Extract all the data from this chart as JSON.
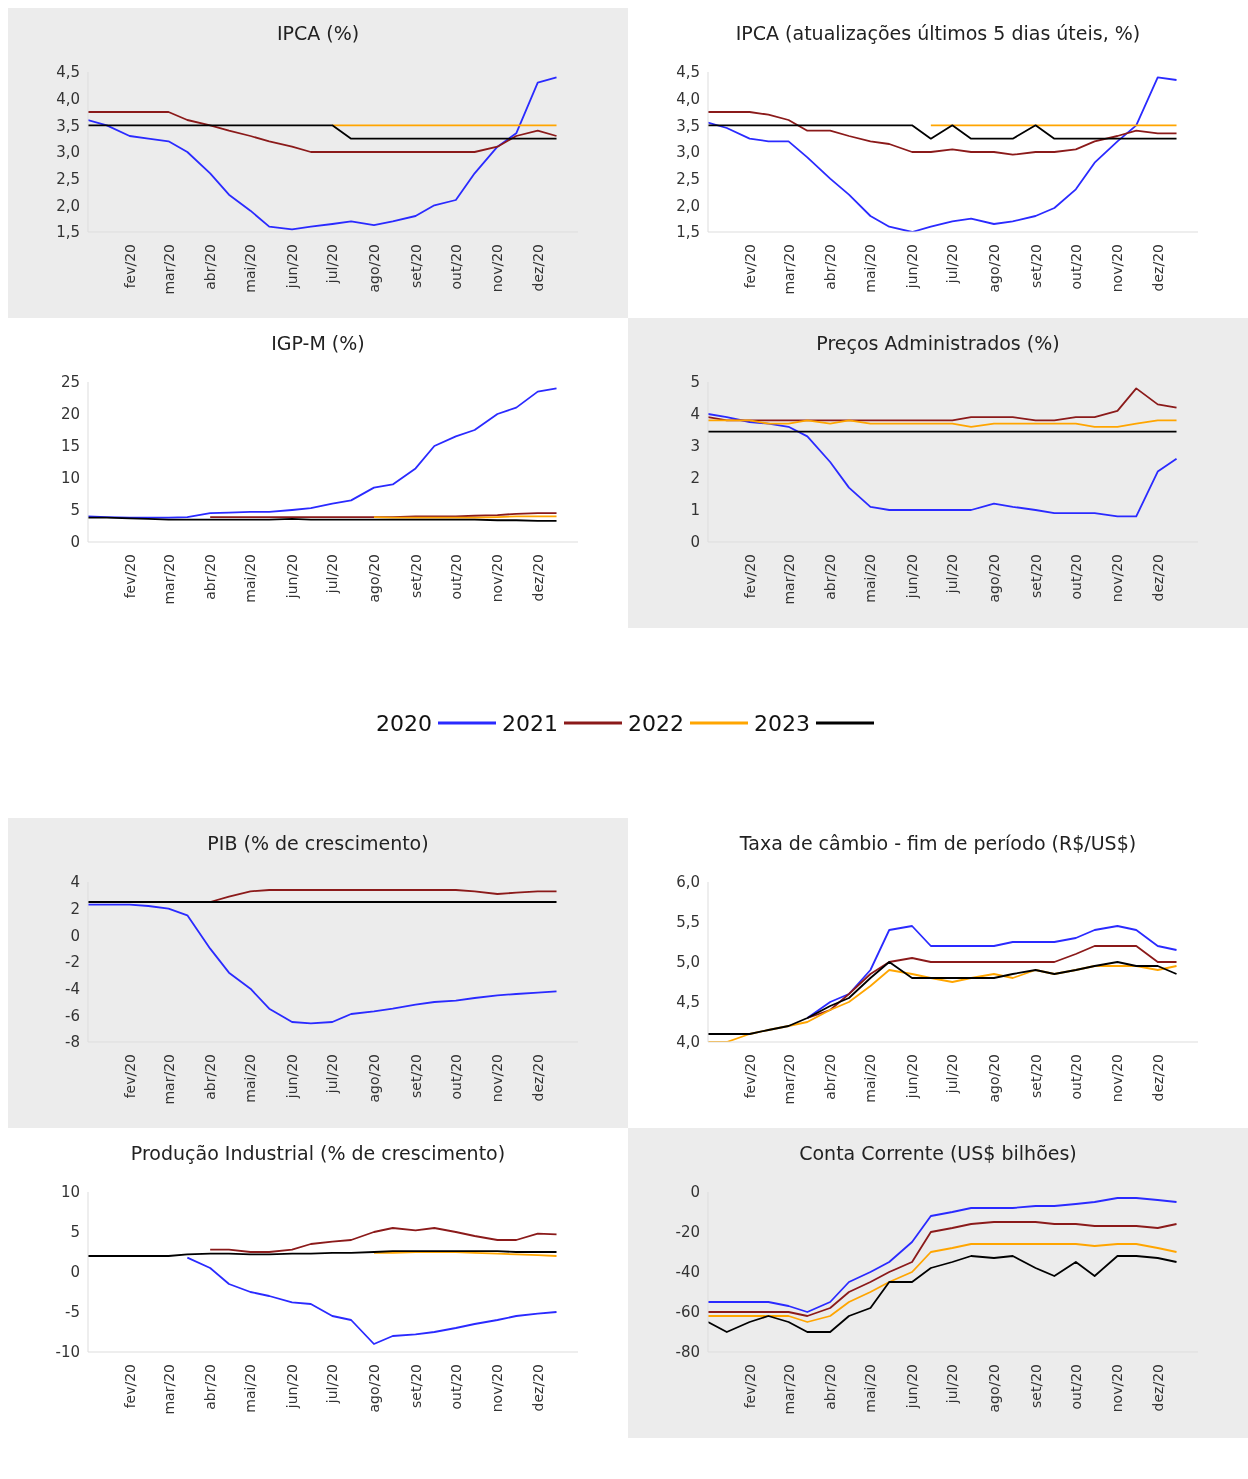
{
  "chart_data": [
    {
      "type": "line",
      "title": "IPCA (%)",
      "legend": "bottom",
      "x": [
        "2020-01-01",
        "2020-01-15",
        "2020-02-01",
        "2020-02-15",
        "2020-03-01",
        "2020-03-15",
        "2020-04-01",
        "2020-04-15",
        "2020-05-01",
        "2020-05-15",
        "2020-06-01",
        "2020-06-15",
        "2020-07-01",
        "2020-07-15",
        "2020-08-01",
        "2020-08-15",
        "2020-09-01",
        "2020-09-15",
        "2020-10-01",
        "2020-10-15",
        "2020-11-01",
        "2020-11-15",
        "2020-12-01",
        "2020-12-15"
      ],
      "xlim": [
        "2020-01-01",
        "2020-12-31"
      ],
      "xticks": [
        {
          "value": "2020-02-01",
          "label": "fev/20"
        },
        {
          "value": "2020-03-01",
          "label": "mar/20"
        },
        {
          "value": "2020-04-01",
          "label": "abr/20"
        },
        {
          "value": "2020-05-01",
          "label": "mai/20"
        },
        {
          "value": "2020-06-01",
          "label": "jun/20"
        },
        {
          "value": "2020-07-01",
          "label": "jul/20"
        },
        {
          "value": "2020-08-01",
          "label": "ago/20"
        },
        {
          "value": "2020-09-01",
          "label": "set/20"
        },
        {
          "value": "2020-10-01",
          "label": "out/20"
        },
        {
          "value": "2020-11-01",
          "label": "nov/20"
        },
        {
          "value": "2020-12-01",
          "label": "dez/20"
        }
      ],
      "ylim": [
        1.5,
        4.5
      ],
      "yticks": [
        {
          "value": 1.5,
          "label": "1,5"
        },
        {
          "value": 2,
          "label": "2,0"
        },
        {
          "value": 2.5,
          "label": "2,5"
        },
        {
          "value": 3,
          "label": "3,0"
        },
        {
          "value": 3.5,
          "label": "3,5"
        },
        {
          "value": 4,
          "label": "4,0"
        },
        {
          "value": 4.5,
          "label": "4,5"
        }
      ],
      "series": [
        {
          "name": "2020",
          "color": "#2a2aff",
          "values": [
            3.6,
            3.5,
            3.3,
            3.25,
            3.2,
            3.0,
            2.6,
            2.2,
            1.9,
            1.6,
            1.55,
            1.6,
            1.65,
            1.7,
            1.63,
            1.7,
            1.8,
            2.0,
            2.1,
            2.6,
            3.1,
            3.35,
            4.3,
            4.4
          ]
        },
        {
          "name": "2021",
          "color": "#8b1a1a",
          "values": [
            3.75,
            3.75,
            3.75,
            3.75,
            3.75,
            3.6,
            3.5,
            3.4,
            3.3,
            3.2,
            3.1,
            3.0,
            3.0,
            3.0,
            3.0,
            3.0,
            3.0,
            3.0,
            3.0,
            3.0,
            3.1,
            3.3,
            3.4,
            3.3
          ]
        },
        {
          "name": "2022",
          "color": "#ffa500",
          "values": [
            null,
            null,
            null,
            null,
            null,
            null,
            null,
            null,
            null,
            null,
            null,
            null,
            3.5,
            3.5,
            3.5,
            3.5,
            3.5,
            3.5,
            3.5,
            3.5,
            3.5,
            3.5,
            3.5,
            3.5
          ]
        },
        {
          "name": "2023",
          "color": "#000000",
          "values": [
            3.5,
            3.5,
            3.5,
            3.5,
            3.5,
            3.5,
            3.5,
            3.5,
            3.5,
            3.5,
            3.5,
            3.5,
            3.5,
            3.25,
            3.25,
            3.25,
            3.25,
            3.25,
            3.25,
            3.25,
            3.25,
            3.25,
            3.25,
            3.25
          ]
        }
      ]
    },
    {
      "type": "line",
      "title": "IPCA (atualizações últimos 5 dias úteis, %)",
      "x": [
        "2020-01-01",
        "2020-01-15",
        "2020-02-01",
        "2020-02-15",
        "2020-03-01",
        "2020-03-15",
        "2020-04-01",
        "2020-04-15",
        "2020-05-01",
        "2020-05-15",
        "2020-06-01",
        "2020-06-15",
        "2020-07-01",
        "2020-07-15",
        "2020-08-01",
        "2020-08-15",
        "2020-09-01",
        "2020-09-15",
        "2020-10-01",
        "2020-10-15",
        "2020-11-01",
        "2020-11-15",
        "2020-12-01",
        "2020-12-15"
      ],
      "xlim": [
        "2020-01-01",
        "2020-12-31"
      ],
      "xticks": [
        {
          "value": "2020-02-01",
          "label": "fev/20"
        },
        {
          "value": "2020-03-01",
          "label": "mar/20"
        },
        {
          "value": "2020-04-01",
          "label": "abr/20"
        },
        {
          "value": "2020-05-01",
          "label": "mai/20"
        },
        {
          "value": "2020-06-01",
          "label": "jun/20"
        },
        {
          "value": "2020-07-01",
          "label": "jul/20"
        },
        {
          "value": "2020-08-01",
          "label": "ago/20"
        },
        {
          "value": "2020-09-01",
          "label": "set/20"
        },
        {
          "value": "2020-10-01",
          "label": "out/20"
        },
        {
          "value": "2020-11-01",
          "label": "nov/20"
        },
        {
          "value": "2020-12-01",
          "label": "dez/20"
        }
      ],
      "ylim": [
        1.5,
        4.5
      ],
      "yticks": [
        {
          "value": 1.5,
          "label": "1,5"
        },
        {
          "value": 2,
          "label": "2,0"
        },
        {
          "value": 2.5,
          "label": "2,5"
        },
        {
          "value": 3,
          "label": "3,0"
        },
        {
          "value": 3.5,
          "label": "3,5"
        },
        {
          "value": 4,
          "label": "4,0"
        },
        {
          "value": 4.5,
          "label": "4,5"
        }
      ],
      "series": [
        {
          "name": "2020",
          "color": "#2a2aff",
          "values": [
            3.55,
            3.45,
            3.25,
            3.2,
            3.2,
            2.9,
            2.5,
            2.2,
            1.8,
            1.6,
            1.5,
            1.6,
            1.7,
            1.75,
            1.65,
            1.7,
            1.8,
            1.95,
            2.3,
            2.8,
            3.2,
            3.5,
            4.4,
            4.35
          ]
        },
        {
          "name": "2021",
          "color": "#8b1a1a",
          "values": [
            3.75,
            3.75,
            3.75,
            3.7,
            3.6,
            3.4,
            3.4,
            3.3,
            3.2,
            3.15,
            3.0,
            3.0,
            3.05,
            3.0,
            3.0,
            2.95,
            3.0,
            3.0,
            3.05,
            3.2,
            3.3,
            3.4,
            3.35,
            3.35
          ]
        },
        {
          "name": "2022",
          "color": "#ffa500",
          "values": [
            null,
            null,
            null,
            null,
            null,
            null,
            null,
            null,
            null,
            null,
            null,
            3.5,
            3.5,
            3.5,
            3.5,
            3.5,
            3.5,
            3.5,
            3.5,
            3.5,
            3.5,
            3.5,
            3.5,
            3.5
          ]
        },
        {
          "name": "2023",
          "color": "#000000",
          "values": [
            3.5,
            3.5,
            3.5,
            3.5,
            3.5,
            3.5,
            3.5,
            3.5,
            3.5,
            3.5,
            3.5,
            3.25,
            3.5,
            3.25,
            3.25,
            3.25,
            3.5,
            3.25,
            3.25,
            3.25,
            3.25,
            3.25,
            3.25,
            3.25
          ]
        }
      ]
    },
    {
      "type": "line",
      "title": "IGP-M (%)",
      "x": [
        "2020-01-01",
        "2020-01-15",
        "2020-02-01",
        "2020-02-15",
        "2020-03-01",
        "2020-03-15",
        "2020-04-01",
        "2020-04-15",
        "2020-05-01",
        "2020-05-15",
        "2020-06-01",
        "2020-06-15",
        "2020-07-01",
        "2020-07-15",
        "2020-08-01",
        "2020-08-15",
        "2020-09-01",
        "2020-09-15",
        "2020-10-01",
        "2020-10-15",
        "2020-11-01",
        "2020-11-15",
        "2020-12-01",
        "2020-12-15"
      ],
      "xlim": [
        "2020-01-01",
        "2020-12-31"
      ],
      "xticks": [
        {
          "value": "2020-02-01",
          "label": "fev/20"
        },
        {
          "value": "2020-03-01",
          "label": "mar/20"
        },
        {
          "value": "2020-04-01",
          "label": "abr/20"
        },
        {
          "value": "2020-05-01",
          "label": "mai/20"
        },
        {
          "value": "2020-06-01",
          "label": "jun/20"
        },
        {
          "value": "2020-07-01",
          "label": "jul/20"
        },
        {
          "value": "2020-08-01",
          "label": "ago/20"
        },
        {
          "value": "2020-09-01",
          "label": "set/20"
        },
        {
          "value": "2020-10-01",
          "label": "out/20"
        },
        {
          "value": "2020-11-01",
          "label": "nov/20"
        },
        {
          "value": "2020-12-01",
          "label": "dez/20"
        }
      ],
      "ylim": [
        0,
        25
      ],
      "yticks": [
        0,
        5,
        10,
        15,
        20,
        25
      ],
      "series": [
        {
          "name": "2020",
          "color": "#2a2aff",
          "values": [
            4.0,
            3.9,
            3.8,
            3.8,
            3.8,
            3.9,
            4.5,
            4.6,
            4.7,
            4.7,
            5.0,
            5.3,
            6.0,
            6.5,
            8.5,
            9.0,
            11.5,
            15.0,
            16.5,
            17.5,
            20.0,
            21.0,
            23.5,
            24.0
          ]
        },
        {
          "name": "2021",
          "color": "#8b1a1a",
          "values": [
            null,
            null,
            null,
            null,
            null,
            null,
            3.9,
            3.9,
            3.9,
            3.9,
            3.9,
            3.9,
            3.9,
            3.9,
            3.9,
            3.9,
            4.0,
            4.0,
            4.0,
            4.1,
            4.2,
            4.4,
            4.5,
            4.5
          ]
        },
        {
          "name": "2022",
          "color": "#ffa500",
          "values": [
            null,
            null,
            null,
            null,
            null,
            null,
            null,
            null,
            null,
            null,
            null,
            null,
            null,
            null,
            3.9,
            3.8,
            3.8,
            3.8,
            3.8,
            3.8,
            3.9,
            4.0,
            4.0,
            4.0
          ]
        },
        {
          "name": "2023",
          "color": "#000000",
          "values": [
            3.8,
            3.8,
            3.7,
            3.6,
            3.5,
            3.5,
            3.5,
            3.5,
            3.5,
            3.5,
            3.6,
            3.5,
            3.5,
            3.5,
            3.5,
            3.5,
            3.5,
            3.5,
            3.5,
            3.5,
            3.4,
            3.4,
            3.3,
            3.3
          ]
        }
      ]
    },
    {
      "type": "line",
      "title": "Preços Administrados (%)",
      "x": [
        "2020-01-01",
        "2020-01-15",
        "2020-02-01",
        "2020-02-15",
        "2020-03-01",
        "2020-03-15",
        "2020-04-01",
        "2020-04-15",
        "2020-05-01",
        "2020-05-15",
        "2020-06-01",
        "2020-06-15",
        "2020-07-01",
        "2020-07-15",
        "2020-08-01",
        "2020-08-15",
        "2020-09-01",
        "2020-09-15",
        "2020-10-01",
        "2020-10-15",
        "2020-11-01",
        "2020-11-15",
        "2020-12-01",
        "2020-12-15"
      ],
      "xlim": [
        "2020-01-01",
        "2020-12-31"
      ],
      "xticks": [
        {
          "value": "2020-02-01",
          "label": "fev/20"
        },
        {
          "value": "2020-03-01",
          "label": "mar/20"
        },
        {
          "value": "2020-04-01",
          "label": "abr/20"
        },
        {
          "value": "2020-05-01",
          "label": "mai/20"
        },
        {
          "value": "2020-06-01",
          "label": "jun/20"
        },
        {
          "value": "2020-07-01",
          "label": "jul/20"
        },
        {
          "value": "2020-08-01",
          "label": "ago/20"
        },
        {
          "value": "2020-09-01",
          "label": "set/20"
        },
        {
          "value": "2020-10-01",
          "label": "out/20"
        },
        {
          "value": "2020-11-01",
          "label": "nov/20"
        },
        {
          "value": "2020-12-01",
          "label": "dez/20"
        }
      ],
      "ylim": [
        0,
        5
      ],
      "yticks": [
        0,
        1,
        2,
        3,
        4,
        5
      ],
      "series": [
        {
          "name": "2020",
          "color": "#2a2aff",
          "values": [
            4.0,
            3.9,
            3.75,
            3.7,
            3.6,
            3.3,
            2.5,
            1.7,
            1.1,
            1.0,
            1.0,
            1.0,
            1.0,
            1.0,
            1.2,
            1.1,
            1.0,
            0.9,
            0.9,
            0.9,
            0.8,
            0.8,
            2.2,
            2.6
          ]
        },
        {
          "name": "2021",
          "color": "#8b1a1a",
          "values": [
            3.9,
            3.8,
            3.8,
            3.8,
            3.8,
            3.8,
            3.8,
            3.8,
            3.8,
            3.8,
            3.8,
            3.8,
            3.8,
            3.9,
            3.9,
            3.9,
            3.8,
            3.8,
            3.9,
            3.9,
            4.1,
            4.8,
            4.3,
            4.2
          ]
        },
        {
          "name": "2022",
          "color": "#ffa500",
          "values": [
            3.8,
            3.8,
            3.8,
            3.7,
            3.7,
            3.8,
            3.7,
            3.8,
            3.7,
            3.7,
            3.7,
            3.7,
            3.7,
            3.6,
            3.7,
            3.7,
            3.7,
            3.7,
            3.7,
            3.6,
            3.6,
            3.7,
            3.8,
            3.8
          ]
        },
        {
          "name": "2023",
          "color": "#000000",
          "values": [
            3.45,
            3.45,
            3.45,
            3.45,
            3.45,
            3.45,
            3.45,
            3.45,
            3.45,
            3.45,
            3.45,
            3.45,
            3.45,
            3.45,
            3.45,
            3.45,
            3.45,
            3.45,
            3.45,
            3.45,
            3.45,
            3.45,
            3.45,
            3.45
          ]
        }
      ]
    },
    {
      "type": "line",
      "title": "PIB (% de crescimento)",
      "x": [
        "2020-01-01",
        "2020-01-15",
        "2020-02-01",
        "2020-02-15",
        "2020-03-01",
        "2020-03-15",
        "2020-04-01",
        "2020-04-15",
        "2020-05-01",
        "2020-05-15",
        "2020-06-01",
        "2020-06-15",
        "2020-07-01",
        "2020-07-15",
        "2020-08-01",
        "2020-08-15",
        "2020-09-01",
        "2020-09-15",
        "2020-10-01",
        "2020-10-15",
        "2020-11-01",
        "2020-11-15",
        "2020-12-01",
        "2020-12-15"
      ],
      "xlim": [
        "2020-01-01",
        "2020-12-31"
      ],
      "xticks": [
        {
          "value": "2020-02-01",
          "label": "fev/20"
        },
        {
          "value": "2020-03-01",
          "label": "mar/20"
        },
        {
          "value": "2020-04-01",
          "label": "abr/20"
        },
        {
          "value": "2020-05-01",
          "label": "mai/20"
        },
        {
          "value": "2020-06-01",
          "label": "jun/20"
        },
        {
          "value": "2020-07-01",
          "label": "jul/20"
        },
        {
          "value": "2020-08-01",
          "label": "ago/20"
        },
        {
          "value": "2020-09-01",
          "label": "set/20"
        },
        {
          "value": "2020-10-01",
          "label": "out/20"
        },
        {
          "value": "2020-11-01",
          "label": "nov/20"
        },
        {
          "value": "2020-12-01",
          "label": "dez/20"
        }
      ],
      "ylim": [
        -8,
        4
      ],
      "yticks": [
        -8,
        -6,
        -4,
        -2,
        0,
        2,
        4
      ],
      "series": [
        {
          "name": "2020",
          "color": "#2a2aff",
          "values": [
            2.3,
            2.3,
            2.3,
            2.2,
            2.0,
            1.5,
            -1.0,
            -2.8,
            -4.0,
            -5.5,
            -6.5,
            -6.6,
            -6.5,
            -5.9,
            -5.7,
            -5.5,
            -5.2,
            -5.0,
            -4.9,
            -4.7,
            -4.5,
            -4.4,
            -4.3,
            -4.2
          ]
        },
        {
          "name": "2021",
          "color": "#8b1a1a",
          "values": [
            null,
            null,
            null,
            null,
            null,
            null,
            2.5,
            2.9,
            3.3,
            3.4,
            3.4,
            3.4,
            3.4,
            3.4,
            3.4,
            3.4,
            3.4,
            3.4,
            3.4,
            3.3,
            3.1,
            3.2,
            3.3,
            3.3
          ]
        },
        {
          "name": "2023",
          "color": "#000000",
          "values": [
            2.5,
            2.5,
            2.5,
            2.5,
            2.5,
            2.5,
            2.5,
            2.5,
            2.5,
            2.5,
            2.5,
            2.5,
            2.5,
            2.5,
            2.5,
            2.5,
            2.5,
            2.5,
            2.5,
            2.5,
            2.5,
            2.5,
            2.5,
            2.5
          ]
        }
      ]
    },
    {
      "type": "line",
      "title": "Taxa de câmbio - fim de período (R$/US$)",
      "x": [
        "2020-01-01",
        "2020-01-15",
        "2020-02-01",
        "2020-02-15",
        "2020-03-01",
        "2020-03-15",
        "2020-04-01",
        "2020-04-15",
        "2020-05-01",
        "2020-05-15",
        "2020-06-01",
        "2020-06-15",
        "2020-07-01",
        "2020-07-15",
        "2020-08-01",
        "2020-08-15",
        "2020-09-01",
        "2020-09-15",
        "2020-10-01",
        "2020-10-15",
        "2020-11-01",
        "2020-11-15",
        "2020-12-01",
        "2020-12-15"
      ],
      "xlim": [
        "2020-01-01",
        "2020-12-31"
      ],
      "xticks": [
        {
          "value": "2020-02-01",
          "label": "fev/20"
        },
        {
          "value": "2020-03-01",
          "label": "mar/20"
        },
        {
          "value": "2020-04-01",
          "label": "abr/20"
        },
        {
          "value": "2020-05-01",
          "label": "mai/20"
        },
        {
          "value": "2020-06-01",
          "label": "jun/20"
        },
        {
          "value": "2020-07-01",
          "label": "jul/20"
        },
        {
          "value": "2020-08-01",
          "label": "ago/20"
        },
        {
          "value": "2020-09-01",
          "label": "set/20"
        },
        {
          "value": "2020-10-01",
          "label": "out/20"
        },
        {
          "value": "2020-11-01",
          "label": "nov/20"
        },
        {
          "value": "2020-12-01",
          "label": "dez/20"
        }
      ],
      "ylim": [
        4,
        6
      ],
      "yticks": [
        {
          "value": 4,
          "label": "4,0"
        },
        {
          "value": 4.5,
          "label": "4,5"
        },
        {
          "value": 5,
          "label": "5,0"
        },
        {
          "value": 5.5,
          "label": "5,5"
        },
        {
          "value": 6,
          "label": "6,0"
        }
      ],
      "series": [
        {
          "name": "2020",
          "color": "#2a2aff",
          "values": [
            null,
            null,
            null,
            null,
            null,
            4.3,
            4.5,
            4.6,
            4.9,
            5.4,
            5.45,
            5.2,
            5.2,
            5.2,
            5.2,
            5.25,
            5.25,
            5.25,
            5.3,
            5.4,
            5.45,
            5.4,
            5.2,
            5.15
          ]
        },
        {
          "name": "2021",
          "color": "#8b1a1a",
          "values": [
            null,
            null,
            null,
            null,
            null,
            4.3,
            4.4,
            4.6,
            4.85,
            5.0,
            5.05,
            5.0,
            5.0,
            5.0,
            5.0,
            5.0,
            5.0,
            5.0,
            5.1,
            5.2,
            5.2,
            5.2,
            5.0,
            5.0
          ]
        },
        {
          "name": "2022",
          "color": "#ffa500",
          "values": [
            4.0,
            4.0,
            4.1,
            4.15,
            4.2,
            4.25,
            4.4,
            4.5,
            4.7,
            4.9,
            4.85,
            4.8,
            4.75,
            4.8,
            4.85,
            4.8,
            4.9,
            4.85,
            4.9,
            4.95,
            4.95,
            4.95,
            4.9,
            4.95
          ]
        },
        {
          "name": "2023",
          "color": "#000000",
          "values": [
            4.1,
            4.1,
            4.1,
            4.15,
            4.2,
            4.3,
            4.45,
            4.55,
            4.8,
            5.0,
            4.8,
            4.8,
            4.8,
            4.8,
            4.8,
            4.85,
            4.9,
            4.85,
            4.9,
            4.95,
            5.0,
            4.95,
            4.95,
            4.85
          ]
        }
      ]
    },
    {
      "type": "line",
      "title": "Produção Industrial (% de crescimento)",
      "x": [
        "2020-01-01",
        "2020-01-15",
        "2020-02-01",
        "2020-02-15",
        "2020-03-01",
        "2020-03-15",
        "2020-04-01",
        "2020-04-15",
        "2020-05-01",
        "2020-05-15",
        "2020-06-01",
        "2020-06-15",
        "2020-07-01",
        "2020-07-15",
        "2020-08-01",
        "2020-08-15",
        "2020-09-01",
        "2020-09-15",
        "2020-10-01",
        "2020-10-15",
        "2020-11-01",
        "2020-11-15",
        "2020-12-01",
        "2020-12-15"
      ],
      "xlim": [
        "2020-01-01",
        "2020-12-31"
      ],
      "xticks": [
        {
          "value": "2020-02-01",
          "label": "fev/20"
        },
        {
          "value": "2020-03-01",
          "label": "mar/20"
        },
        {
          "value": "2020-04-01",
          "label": "abr/20"
        },
        {
          "value": "2020-05-01",
          "label": "mai/20"
        },
        {
          "value": "2020-06-01",
          "label": "jun/20"
        },
        {
          "value": "2020-07-01",
          "label": "jul/20"
        },
        {
          "value": "2020-08-01",
          "label": "ago/20"
        },
        {
          "value": "2020-09-01",
          "label": "set/20"
        },
        {
          "value": "2020-10-01",
          "label": "out/20"
        },
        {
          "value": "2020-11-01",
          "label": "nov/20"
        },
        {
          "value": "2020-12-01",
          "label": "dez/20"
        }
      ],
      "ylim": [
        -10,
        10
      ],
      "yticks": [
        -10,
        -5,
        0,
        5,
        10
      ],
      "series": [
        {
          "name": "2020",
          "color": "#2a2aff",
          "values": [
            null,
            null,
            null,
            null,
            null,
            1.8,
            0.5,
            -1.5,
            -2.5,
            -3.0,
            -3.8,
            -4.0,
            -5.5,
            -6.0,
            -9.0,
            -8.0,
            -7.8,
            -7.5,
            -7.0,
            -6.5,
            -6.0,
            -5.5,
            -5.2,
            -5.0
          ]
        },
        {
          "name": "2021",
          "color": "#8b1a1a",
          "values": [
            null,
            null,
            null,
            null,
            null,
            null,
            2.8,
            2.8,
            2.5,
            2.5,
            2.8,
            3.5,
            3.8,
            4.0,
            5.0,
            5.5,
            5.2,
            5.5,
            5.0,
            4.5,
            4.0,
            4.0,
            4.8,
            4.7
          ]
        },
        {
          "name": "2022",
          "color": "#ffa500",
          "values": [
            null,
            null,
            null,
            null,
            null,
            null,
            null,
            null,
            null,
            null,
            null,
            null,
            null,
            null,
            2.4,
            2.4,
            2.5,
            2.5,
            2.5,
            2.4,
            2.3,
            2.2,
            2.1,
            2.0
          ]
        },
        {
          "name": "2023",
          "color": "#000000",
          "values": [
            2.0,
            2.0,
            2.0,
            2.0,
            2.0,
            2.2,
            2.3,
            2.3,
            2.2,
            2.2,
            2.3,
            2.3,
            2.4,
            2.4,
            2.5,
            2.6,
            2.6,
            2.6,
            2.6,
            2.6,
            2.6,
            2.5,
            2.5,
            2.5
          ]
        }
      ]
    },
    {
      "type": "line",
      "title": "Conta Corrente (US$ bilhões)",
      "x": [
        "2020-01-01",
        "2020-01-15",
        "2020-02-01",
        "2020-02-15",
        "2020-03-01",
        "2020-03-15",
        "2020-04-01",
        "2020-04-15",
        "2020-05-01",
        "2020-05-15",
        "2020-06-01",
        "2020-06-15",
        "2020-07-01",
        "2020-07-15",
        "2020-08-01",
        "2020-08-15",
        "2020-09-01",
        "2020-09-15",
        "2020-10-01",
        "2020-10-15",
        "2020-11-01",
        "2020-11-15",
        "2020-12-01",
        "2020-12-15"
      ],
      "xlim": [
        "2020-01-01",
        "2020-12-31"
      ],
      "xticks": [
        {
          "value": "2020-02-01",
          "label": "fev/20"
        },
        {
          "value": "2020-03-01",
          "label": "mar/20"
        },
        {
          "value": "2020-04-01",
          "label": "abr/20"
        },
        {
          "value": "2020-05-01",
          "label": "mai/20"
        },
        {
          "value": "2020-06-01",
          "label": "jun/20"
        },
        {
          "value": "2020-07-01",
          "label": "jul/20"
        },
        {
          "value": "2020-08-01",
          "label": "ago/20"
        },
        {
          "value": "2020-09-01",
          "label": "set/20"
        },
        {
          "value": "2020-10-01",
          "label": "out/20"
        },
        {
          "value": "2020-11-01",
          "label": "nov/20"
        },
        {
          "value": "2020-12-01",
          "label": "dez/20"
        }
      ],
      "ylim": [
        -80,
        0
      ],
      "yticks": [
        -80,
        -60,
        -40,
        -20,
        0
      ],
      "series": [
        {
          "name": "2020",
          "color": "#2a2aff",
          "values": [
            -55,
            -55,
            -55,
            -55,
            -57,
            -60,
            -55,
            -45,
            -40,
            -35,
            -25,
            -12,
            -10,
            -8,
            -8,
            -8,
            -7,
            -7,
            -6,
            -5,
            -3,
            -3,
            -4,
            -5
          ]
        },
        {
          "name": "2021",
          "color": "#8b1a1a",
          "values": [
            -60,
            -60,
            -60,
            -60,
            -60,
            -62,
            -58,
            -50,
            -45,
            -40,
            -35,
            -20,
            -18,
            -16,
            -15,
            -15,
            -15,
            -16,
            -16,
            -17,
            -17,
            -17,
            -18,
            -16
          ]
        },
        {
          "name": "2022",
          "color": "#ffa500",
          "values": [
            -62,
            -62,
            -62,
            -62,
            -62,
            -65,
            -62,
            -55,
            -50,
            -45,
            -40,
            -30,
            -28,
            -26,
            -26,
            -26,
            -26,
            -26,
            -26,
            -27,
            -26,
            -26,
            -28,
            -30
          ]
        },
        {
          "name": "2023",
          "color": "#000000",
          "values": [
            -65,
            -70,
            -65,
            -62,
            -65,
            -70,
            -70,
            -62,
            -58,
            -45,
            -45,
            -38,
            -35,
            -32,
            -33,
            -32,
            -38,
            -42,
            -35,
            -42,
            -32,
            -32,
            -33,
            -35
          ]
        }
      ]
    }
  ]
}
